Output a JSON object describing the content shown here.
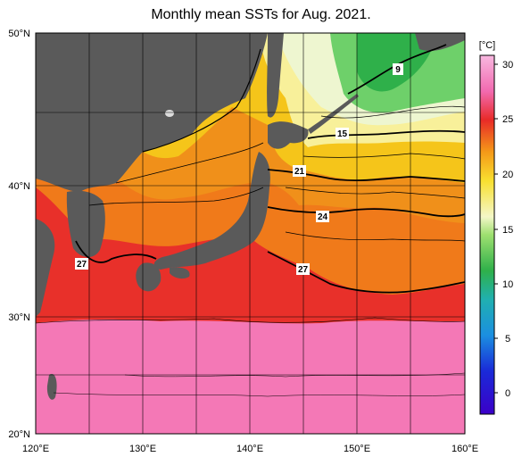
{
  "title": "Monthly mean SSTs for Aug. 2021.",
  "colorbar": {
    "unit": "[°C]",
    "ticks": [
      "30",
      "25",
      "20",
      "15",
      "10",
      "5",
      "0"
    ]
  },
  "axes": {
    "lat_labels": [
      "50°N",
      "40°N",
      "30°N",
      "20°N"
    ],
    "lon_labels": [
      "120°E",
      "130°E",
      "140°E",
      "150°E",
      "160°E"
    ]
  },
  "contour_labels": [
    "9",
    "15",
    "21",
    "24",
    "27",
    "27"
  ],
  "colors": {
    "land": "#5a5a5a",
    "sst_warm": "#f26ab0",
    "sst_27": "#e8302a",
    "sst_24": "#f07a1a",
    "sst_21": "#f5c51a",
    "sst_15": "#e8f0a0",
    "sst_9": "#2fb04a"
  }
}
